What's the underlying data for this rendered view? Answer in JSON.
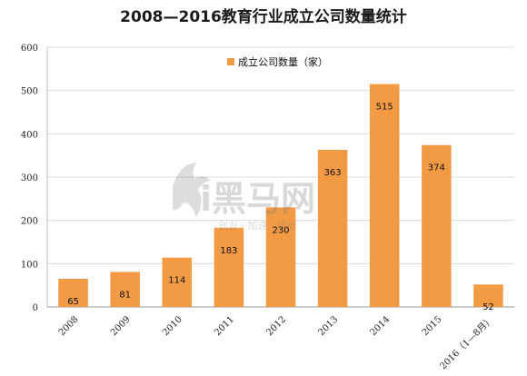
{
  "chart_data": {
    "type": "bar",
    "title": "2008—2016教育行业成立公司数量统计",
    "series": [
      {
        "name": "成立公司数量（家）",
        "color": "#f39a45",
        "values": [
          65,
          81,
          114,
          183,
          230,
          363,
          515,
          374,
          52
        ]
      }
    ],
    "categories": [
      "2008",
      "2009",
      "2010",
      "2011",
      "2012",
      "2013",
      "2014",
      "2015",
      "2016（1—8月）"
    ],
    "ylim": [
      0,
      600
    ],
    "yticks": [
      0,
      100,
      200,
      300,
      400,
      500,
      600
    ],
    "grid": true,
    "legend_position": "top-center"
  },
  "watermark": {
    "text": "i黑马网",
    "subtext": "创业 · 加速 · 成长"
  }
}
